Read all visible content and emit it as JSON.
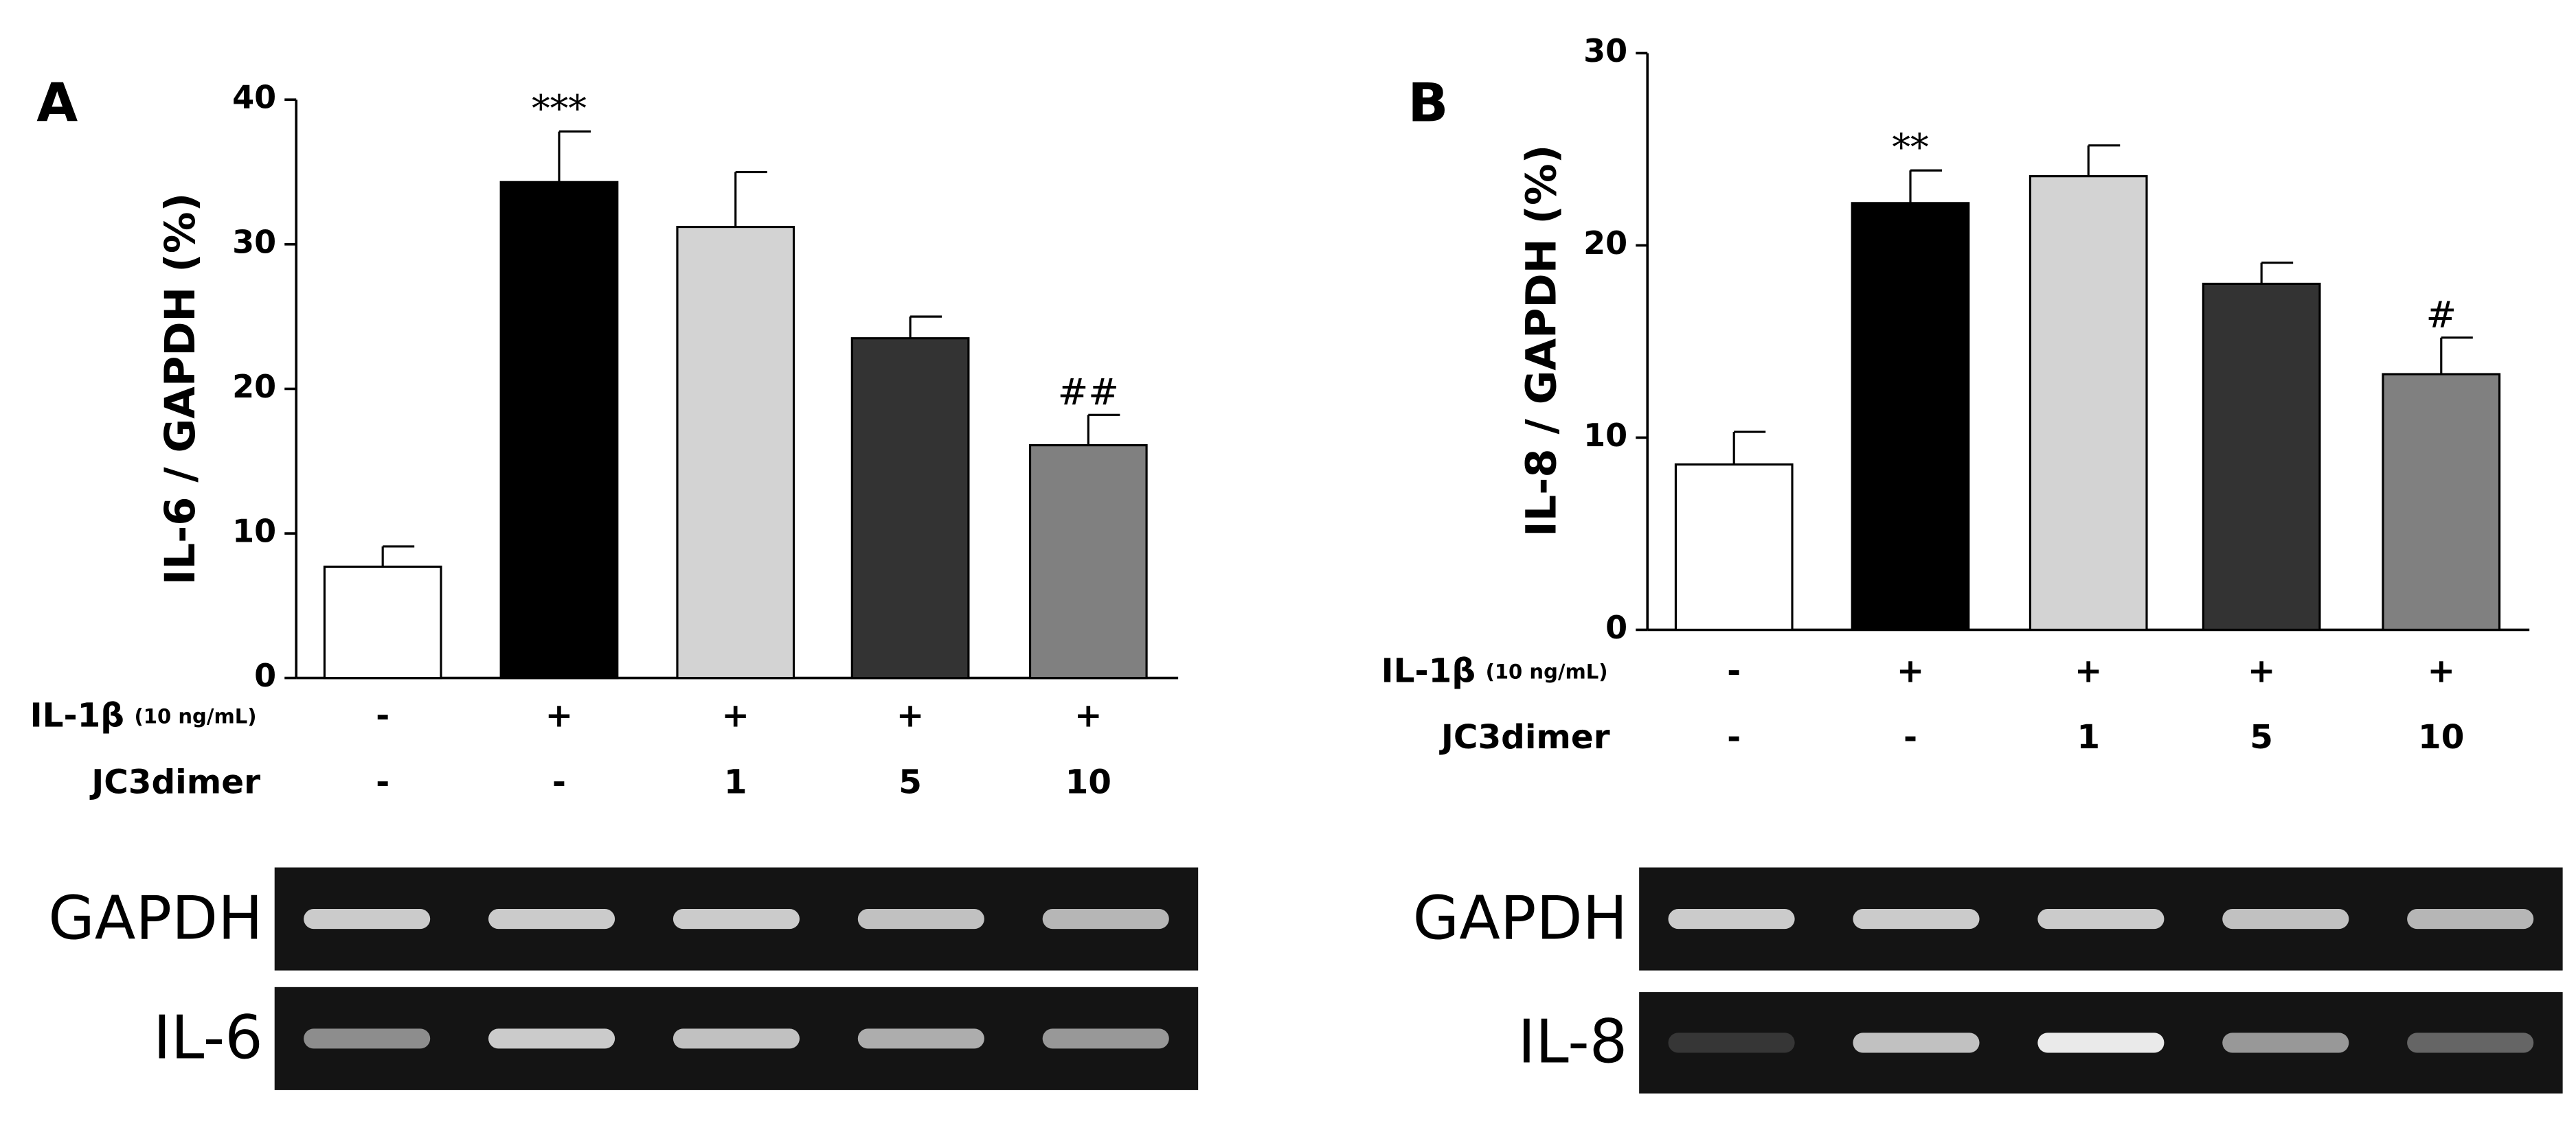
{
  "chart_data": [
    {
      "type": "bar",
      "panel": "A",
      "ylabel": "IL-6 / GAPDH (%)",
      "ylim": [
        0,
        40
      ],
      "yticks": [
        0,
        10,
        20,
        30,
        40
      ],
      "values": [
        7.7,
        34.3,
        31.2,
        23.5,
        16.1
      ],
      "errors": [
        1.4,
        3.5,
        3.8,
        1.5,
        2.1
      ],
      "colors": [
        "#ffffff",
        "#000000",
        "#d3d3d3",
        "#333333",
        "#808080"
      ],
      "annotations": [
        null,
        "***",
        null,
        null,
        "##"
      ],
      "treatments": [
        {
          "name": "IL-1β",
          "unit": "(10 ng/mL)",
          "values": [
            "-",
            "+",
            "+",
            "+",
            "+"
          ]
        },
        {
          "name": "JC3dimer",
          "values": [
            "-",
            "-",
            "1",
            "5",
            "10"
          ]
        }
      ],
      "gels": [
        "GAPDH",
        "IL-6"
      ]
    },
    {
      "type": "bar",
      "panel": "B",
      "ylabel": "IL-8 / GAPDH (%)",
      "ylim": [
        0,
        30
      ],
      "yticks": [
        0,
        10,
        20,
        30
      ],
      "values": [
        8.6,
        22.2,
        23.6,
        18.0,
        13.3
      ],
      "errors": [
        1.7,
        1.7,
        1.6,
        1.1,
        1.9
      ],
      "colors": [
        "#ffffff",
        "#000000",
        "#d3d3d3",
        "#333333",
        "#808080"
      ],
      "annotations": [
        null,
        "**",
        null,
        null,
        "#"
      ],
      "treatments": [
        {
          "name": "IL-1β",
          "unit": "(10 ng/mL)",
          "values": [
            "-",
            "+",
            "+",
            "+",
            "+"
          ]
        },
        {
          "name": "JC3dimer",
          "values": [
            "-",
            "-",
            "1",
            "5",
            "10"
          ]
        }
      ],
      "gels": [
        "GAPDH",
        "IL-8"
      ]
    }
  ]
}
